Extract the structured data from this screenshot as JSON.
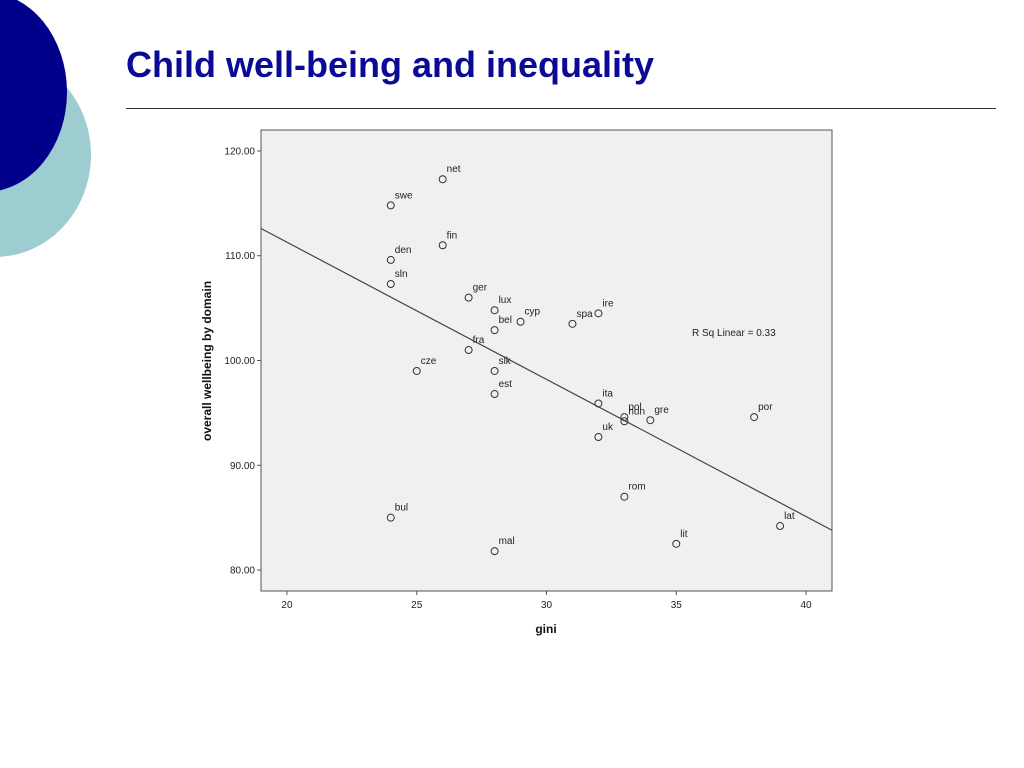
{
  "slide": {
    "title": "Child well-being and inequality",
    "colors": {
      "title": "#0a0a96",
      "oval_dark": "#00008a",
      "oval_light": "#9dcdd0",
      "plot_bg": "#f0f0f0"
    }
  },
  "chart_data": {
    "type": "scatter",
    "title": "",
    "xlabel": "gini",
    "ylabel": "overall wellbeing by domain",
    "xlim": [
      19,
      41
    ],
    "ylim": [
      78,
      122
    ],
    "xticks": [
      20,
      25,
      30,
      35,
      40
    ],
    "xtick_labels": [
      "20",
      "25",
      "30",
      "35",
      "40"
    ],
    "yticks": [
      80,
      90,
      100,
      110,
      120
    ],
    "ytick_labels": [
      "80.00",
      "90.00",
      "100.00",
      "110.00",
      "120.00"
    ],
    "grid": false,
    "marker": "open-circle",
    "points": [
      {
        "label": "net",
        "x": 26,
        "y": 117.3
      },
      {
        "label": "swe",
        "x": 24,
        "y": 114.8
      },
      {
        "label": "fin",
        "x": 26,
        "y": 111.0
      },
      {
        "label": "den",
        "x": 24,
        "y": 109.6
      },
      {
        "label": "sln",
        "x": 24,
        "y": 107.3
      },
      {
        "label": "ger",
        "x": 27,
        "y": 106.0
      },
      {
        "label": "lux",
        "x": 28,
        "y": 104.8
      },
      {
        "label": "cyp",
        "x": 29,
        "y": 103.7
      },
      {
        "label": "bel",
        "x": 28,
        "y": 102.9
      },
      {
        "label": "spa",
        "x": 31,
        "y": 103.5
      },
      {
        "label": "ire",
        "x": 32,
        "y": 104.5
      },
      {
        "label": "fra",
        "x": 27,
        "y": 101.0
      },
      {
        "label": "cze",
        "x": 25,
        "y": 99.0
      },
      {
        "label": "slk",
        "x": 28,
        "y": 99.0
      },
      {
        "label": "est",
        "x": 28,
        "y": 96.8
      },
      {
        "label": "ita",
        "x": 32,
        "y": 95.9
      },
      {
        "label": "pol",
        "x": 33,
        "y": 94.6
      },
      {
        "label": "hun",
        "x": 33,
        "y": 94.2
      },
      {
        "label": "gre",
        "x": 34,
        "y": 94.3
      },
      {
        "label": "uk",
        "x": 32,
        "y": 92.7
      },
      {
        "label": "por",
        "x": 38,
        "y": 94.6
      },
      {
        "label": "rom",
        "x": 33,
        "y": 87.0
      },
      {
        "label": "bul",
        "x": 24,
        "y": 85.0
      },
      {
        "label": "lat",
        "x": 39,
        "y": 84.2
      },
      {
        "label": "lit",
        "x": 35,
        "y": 82.5
      },
      {
        "label": "mal",
        "x": 28,
        "y": 81.8
      }
    ],
    "fit_line": {
      "x1": 19,
      "y1": 112.6,
      "x2": 41,
      "y2": 83.8
    },
    "annotation": "R Sq Linear = 0.33"
  }
}
